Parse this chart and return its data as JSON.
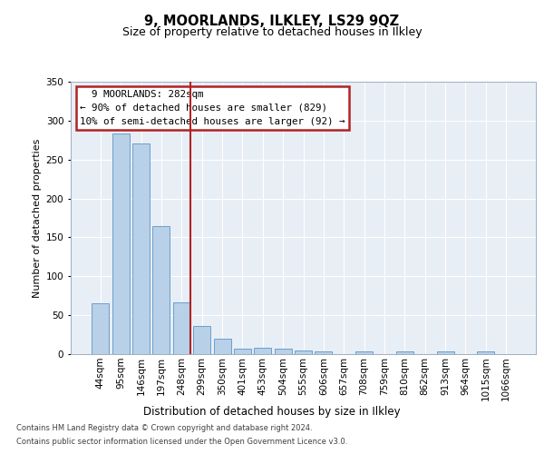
{
  "title": "9, MOORLANDS, ILKLEY, LS29 9QZ",
  "subtitle": "Size of property relative to detached houses in Ilkley",
  "xlabel": "Distribution of detached houses by size in Ilkley",
  "ylabel": "Number of detached properties",
  "footer_line1": "Contains HM Land Registry data © Crown copyright and database right 2024.",
  "footer_line2": "Contains public sector information licensed under the Open Government Licence v3.0.",
  "annotation_line1": "  9 MOORLANDS: 282sqm",
  "annotation_line2": "← 90% of detached houses are smaller (829)",
  "annotation_line3": "10% of semi-detached houses are larger (92) →",
  "categories": [
    "44sqm",
    "95sqm",
    "146sqm",
    "197sqm",
    "248sqm",
    "299sqm",
    "350sqm",
    "401sqm",
    "453sqm",
    "504sqm",
    "555sqm",
    "606sqm",
    "657sqm",
    "708sqm",
    "759sqm",
    "810sqm",
    "862sqm",
    "913sqm",
    "964sqm",
    "1015sqm",
    "1066sqm"
  ],
  "values": [
    65,
    283,
    271,
    164,
    67,
    36,
    20,
    7,
    8,
    7,
    5,
    4,
    0,
    3,
    0,
    3,
    0,
    3,
    0,
    3,
    0
  ],
  "bar_color": "#b8d0e8",
  "bar_edge_color": "#6aa0cc",
  "vline_x_index": 4,
  "vline_color": "#b22222",
  "background_color": "#e8eef6",
  "grid_color": "#ffffff",
  "annotation_box_edge_color": "#b22222",
  "ylim": [
    0,
    350
  ],
  "yticks": [
    0,
    50,
    100,
    150,
    200,
    250,
    300,
    350
  ],
  "title_fontsize": 10.5,
  "subtitle_fontsize": 9,
  "ylabel_fontsize": 8,
  "xlabel_fontsize": 8.5,
  "tick_fontsize": 7.5,
  "annotation_fontsize": 7.8
}
